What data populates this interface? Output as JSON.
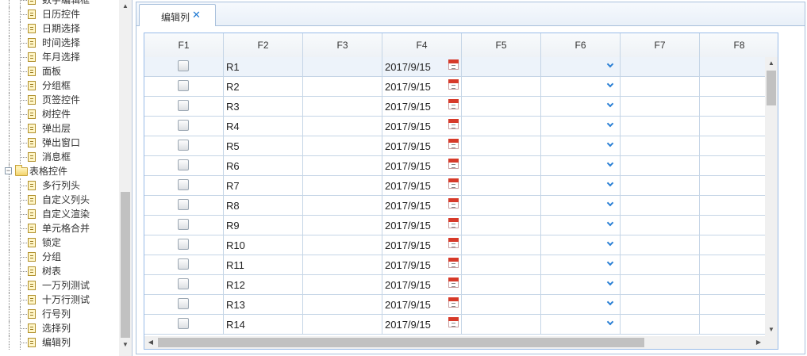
{
  "tree": {
    "items": [
      {
        "label": "数字编辑框",
        "type": "doc",
        "depth": 2
      },
      {
        "label": "日历控件",
        "type": "doc",
        "depth": 2
      },
      {
        "label": "日期选择",
        "type": "doc",
        "depth": 2
      },
      {
        "label": "时间选择",
        "type": "doc",
        "depth": 2
      },
      {
        "label": "年月选择",
        "type": "doc",
        "depth": 2
      },
      {
        "label": "面板",
        "type": "doc",
        "depth": 2
      },
      {
        "label": "分组框",
        "type": "doc",
        "depth": 2
      },
      {
        "label": "页签控件",
        "type": "doc",
        "depth": 2
      },
      {
        "label": "树控件",
        "type": "doc",
        "depth": 2
      },
      {
        "label": "弹出层",
        "type": "doc",
        "depth": 2
      },
      {
        "label": "弹出窗口",
        "type": "doc",
        "depth": 2
      },
      {
        "label": "消息框",
        "type": "doc",
        "depth": 2
      },
      {
        "label": "表格控件",
        "type": "folder",
        "depth": 1,
        "toggle": "−"
      },
      {
        "label": "多行列头",
        "type": "doc",
        "depth": 2
      },
      {
        "label": "自定义列头",
        "type": "doc",
        "depth": 2
      },
      {
        "label": "自定义渲染",
        "type": "doc",
        "depth": 2
      },
      {
        "label": "单元格合并",
        "type": "doc",
        "depth": 2
      },
      {
        "label": "锁定",
        "type": "doc",
        "depth": 2
      },
      {
        "label": "分组",
        "type": "doc",
        "depth": 2
      },
      {
        "label": "树表",
        "type": "doc",
        "depth": 2
      },
      {
        "label": "一万列测试",
        "type": "doc",
        "depth": 2
      },
      {
        "label": "十万行测试",
        "type": "doc",
        "depth": 2
      },
      {
        "label": "行号列",
        "type": "doc",
        "depth": 2
      },
      {
        "label": "选择列",
        "type": "doc",
        "depth": 2
      },
      {
        "label": "编辑列",
        "type": "doc",
        "depth": 2
      }
    ],
    "scrollbar": {
      "up_icon": "▲",
      "down_icon": "▼"
    }
  },
  "tabs": [
    {
      "label": "编辑列",
      "close_icon": "✕",
      "active": true
    }
  ],
  "grid": {
    "columns": [
      "F1",
      "F2",
      "F3",
      "F4",
      "F5",
      "F6",
      "F7",
      "F8"
    ],
    "rows": [
      {
        "f2": "R1",
        "f4": "2017/9/15"
      },
      {
        "f2": "R2",
        "f4": "2017/9/15"
      },
      {
        "f2": "R3",
        "f4": "2017/9/15"
      },
      {
        "f2": "R4",
        "f4": "2017/9/15"
      },
      {
        "f2": "R5",
        "f4": "2017/9/15"
      },
      {
        "f2": "R6",
        "f4": "2017/9/15"
      },
      {
        "f2": "R7",
        "f4": "2017/9/15"
      },
      {
        "f2": "R8",
        "f4": "2017/9/15"
      },
      {
        "f2": "R9",
        "f4": "2017/9/15"
      },
      {
        "f2": "R10",
        "f4": "2017/9/15"
      },
      {
        "f2": "R11",
        "f4": "2017/9/15"
      },
      {
        "f2": "R12",
        "f4": "2017/9/15"
      },
      {
        "f2": "R13",
        "f4": "2017/9/15"
      },
      {
        "f2": "R14",
        "f4": "2017/9/15"
      }
    ],
    "scroll_icons": {
      "up": "▲",
      "down": "▼",
      "left": "◀",
      "right": "▶"
    }
  },
  "colors": {
    "accent": "#1e78d2",
    "border": "#99bbe8",
    "selected_row": "#edf3fa",
    "calendar_red": "#d63a2a"
  }
}
